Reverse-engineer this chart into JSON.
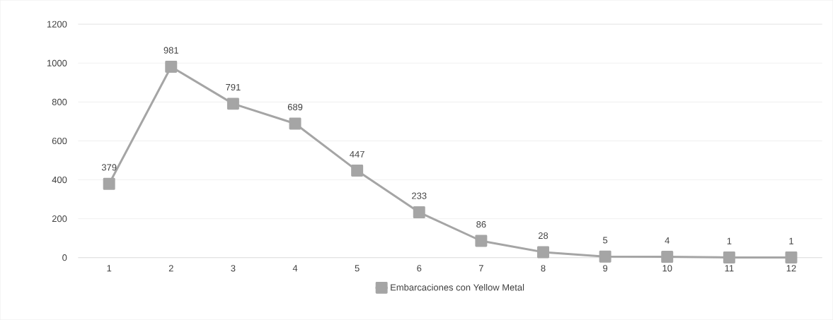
{
  "chart_data": {
    "type": "line",
    "categories": [
      "1",
      "2",
      "3",
      "4",
      "5",
      "6",
      "7",
      "8",
      "9",
      "10",
      "11",
      "12"
    ],
    "series": [
      {
        "name": "Embarcaciones con Yellow Metal",
        "color": "#a5a5a5",
        "values": [
          379,
          981,
          791,
          689,
          447,
          233,
          86,
          28,
          5,
          4,
          1,
          1
        ]
      }
    ],
    "ylim": [
      0,
      1200
    ],
    "yticks": [
      0,
      200,
      400,
      600,
      800,
      1000,
      1200
    ],
    "grid": "y",
    "legend": "bottom",
    "marker": "square",
    "line_style": "solid",
    "data_labels": true
  }
}
